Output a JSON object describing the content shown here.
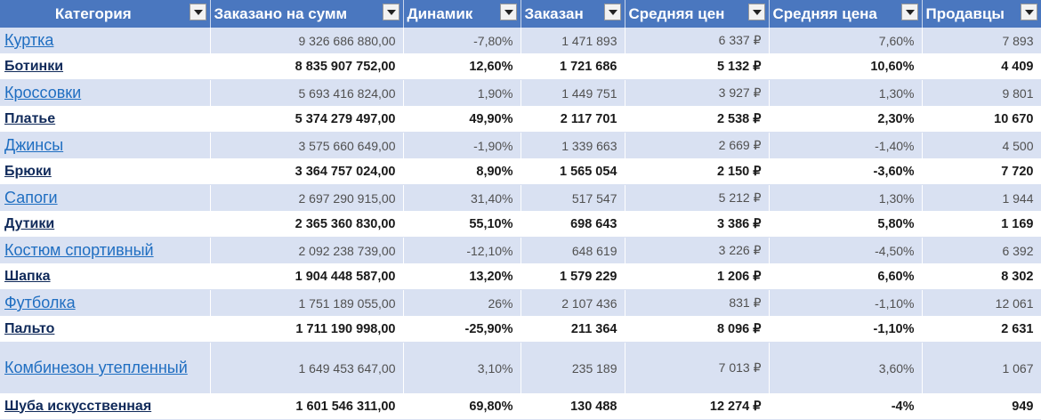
{
  "header": {
    "category": "Категория",
    "ordered_sum": "Заказано на сумм",
    "dynamics": "Динамик",
    "ordered_qty": "Заказан",
    "avg_price": "Средняя цен",
    "avg_price_change": "Средняя цена",
    "sellers": "Продавцы"
  },
  "rows": [
    {
      "category": "Куртка",
      "ordered_sum": "9 326 686 880,00",
      "dynamics": "-7,80%",
      "ordered_qty": "1 471 893",
      "avg_price": "6 337 ₽",
      "avg_price_change": "7,60%",
      "sellers": "7 893"
    },
    {
      "category": "Ботинки",
      "ordered_sum": "8 835 907 752,00",
      "dynamics": "12,60%",
      "ordered_qty": "1 721 686",
      "avg_price": "5 132 ₽",
      "avg_price_change": "10,60%",
      "sellers": "4 409"
    },
    {
      "category": "Кроссовки",
      "ordered_sum": "5 693 416 824,00",
      "dynamics": "1,90%",
      "ordered_qty": "1 449 751",
      "avg_price": "3 927 ₽",
      "avg_price_change": "1,30%",
      "sellers": "9 801"
    },
    {
      "category": "Платье",
      "ordered_sum": "5 374 279 497,00",
      "dynamics": "49,90%",
      "ordered_qty": "2 117 701",
      "avg_price": "2 538 ₽",
      "avg_price_change": "2,30%",
      "sellers": "10 670"
    },
    {
      "category": "Джинсы",
      "ordered_sum": "3 575 660 649,00",
      "dynamics": "-1,90%",
      "ordered_qty": "1 339 663",
      "avg_price": "2 669 ₽",
      "avg_price_change": "-1,40%",
      "sellers": "4 500"
    },
    {
      "category": "Брюки",
      "ordered_sum": "3 364 757 024,00",
      "dynamics": "8,90%",
      "ordered_qty": "1 565 054",
      "avg_price": "2 150 ₽",
      "avg_price_change": "-3,60%",
      "sellers": "7 720"
    },
    {
      "category": "Сапоги",
      "ordered_sum": "2 697 290 915,00",
      "dynamics": "31,40%",
      "ordered_qty": "517 547",
      "avg_price": "5 212 ₽",
      "avg_price_change": "1,30%",
      "sellers": "1 944"
    },
    {
      "category": "Дутики",
      "ordered_sum": "2 365 360 830,00",
      "dynamics": "55,10%",
      "ordered_qty": "698 643",
      "avg_price": "3 386 ₽",
      "avg_price_change": "5,80%",
      "sellers": "1 169"
    },
    {
      "category": "Костюм спортивный",
      "ordered_sum": "2 092 238 739,00",
      "dynamics": "-12,10%",
      "ordered_qty": "648 619",
      "avg_price": "3 226 ₽",
      "avg_price_change": "-4,50%",
      "sellers": "6 392"
    },
    {
      "category": "Шапка",
      "ordered_sum": "1 904 448 587,00",
      "dynamics": "13,20%",
      "ordered_qty": "1 579 229",
      "avg_price": "1 206 ₽",
      "avg_price_change": "6,60%",
      "sellers": "8 302"
    },
    {
      "category": "Футболка",
      "ordered_sum": "1 751 189 055,00",
      "dynamics": "26%",
      "ordered_qty": "2 107 436",
      "avg_price": "831 ₽",
      "avg_price_change": "-1,10%",
      "sellers": "12 061"
    },
    {
      "category": "Пальто",
      "ordered_sum": "1 711 190 998,00",
      "dynamics": "-25,90%",
      "ordered_qty": "211 364",
      "avg_price": "8 096 ₽",
      "avg_price_change": "-1,10%",
      "sellers": "2 631"
    },
    {
      "category": "Комбинезон утепленный",
      "ordered_sum": "1 649 453 647,00",
      "dynamics": "3,10%",
      "ordered_qty": "235 189",
      "avg_price": "7 013 ₽",
      "avg_price_change": "3,60%",
      "sellers": "1 067"
    },
    {
      "category": "Шуба искусственная",
      "ordered_sum": "1 601 546 311,00",
      "dynamics": "69,80%",
      "ordered_qty": "130 488",
      "avg_price": "12 274 ₽",
      "avg_price_change": "-4%",
      "sellers": "949"
    }
  ]
}
